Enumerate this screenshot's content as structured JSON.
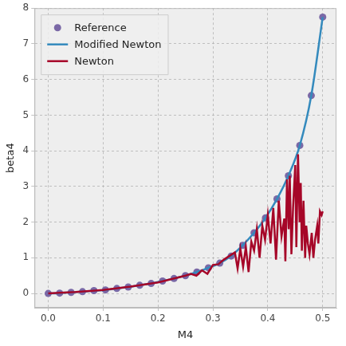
{
  "chart_data": {
    "type": "line",
    "x_label": "M4",
    "y_label": "beta4",
    "xlim": [
      -0.025,
      0.525
    ],
    "ylim": [
      -0.4,
      8
    ],
    "xticks": [
      {
        "value": 0,
        "label": "0.0"
      },
      {
        "value": 0.1,
        "label": "0.1"
      },
      {
        "value": 0.2,
        "label": "0.2"
      },
      {
        "value": 0.3,
        "label": "0.3"
      },
      {
        "value": 0.4,
        "label": "0.4"
      },
      {
        "value": 0.5,
        "label": "0.5"
      }
    ],
    "yticks": [
      0,
      1,
      2,
      3,
      4,
      5,
      6,
      7,
      8
    ],
    "grid": true,
    "legend": "upper left",
    "series": [
      {
        "name": "Reference",
        "type": "scatter",
        "marker": "circle",
        "color": "#7a68a6",
        "x": [
          0,
          0.0208,
          0.0417,
          0.0625,
          0.0833,
          0.1042,
          0.125,
          0.1458,
          0.1667,
          0.1875,
          0.2083,
          0.2292,
          0.25,
          0.2708,
          0.2917,
          0.3125,
          0.3333,
          0.3542,
          0.375,
          0.3958,
          0.4167,
          0.4375,
          0.4583,
          0.4792,
          0.5
        ],
        "values": [
          0,
          0.01,
          0.03,
          0.05,
          0.08,
          0.1,
          0.14,
          0.18,
          0.23,
          0.28,
          0.35,
          0.42,
          0.5,
          0.6,
          0.72,
          0.85,
          1.05,
          1.35,
          1.7,
          2.12,
          2.65,
          3.3,
          4.15,
          5.55,
          7.75
        ]
      },
      {
        "name": "Modified Newton",
        "type": "line",
        "line_style": "solid",
        "color": "#348abd",
        "x": [
          0,
          0.0208,
          0.0417,
          0.0625,
          0.0833,
          0.1042,
          0.125,
          0.1458,
          0.1667,
          0.1875,
          0.2083,
          0.2292,
          0.25,
          0.2708,
          0.2917,
          0.3125,
          0.3333,
          0.3542,
          0.375,
          0.3958,
          0.4167,
          0.4375,
          0.4583,
          0.4792,
          0.5
        ],
        "values": [
          0,
          0.01,
          0.03,
          0.05,
          0.08,
          0.1,
          0.14,
          0.18,
          0.23,
          0.28,
          0.35,
          0.42,
          0.5,
          0.6,
          0.72,
          0.85,
          1.05,
          1.35,
          1.7,
          2.12,
          2.65,
          3.3,
          4.15,
          5.55,
          7.75
        ]
      },
      {
        "name": "Newton",
        "type": "line",
        "line_style": "solid",
        "color": "#a60628",
        "x": [
          0,
          0.05,
          0.1,
          0.15,
          0.2,
          0.25,
          0.26,
          0.27,
          0.28,
          0.29,
          0.3,
          0.31,
          0.32,
          0.33,
          0.34,
          0.345,
          0.35,
          0.355,
          0.36,
          0.365,
          0.37,
          0.375,
          0.38,
          0.385,
          0.39,
          0.395,
          0.4,
          0.405,
          0.41,
          0.415,
          0.42,
          0.425,
          0.43,
          0.432,
          0.435,
          0.438,
          0.44,
          0.443,
          0.446,
          0.45,
          0.452,
          0.455,
          0.458,
          0.46,
          0.462,
          0.465,
          0.468,
          0.47,
          0.473,
          0.476,
          0.48,
          0.483,
          0.486,
          0.49,
          0.492,
          0.495,
          0.498,
          0.5
        ],
        "values": [
          0,
          0.04,
          0.1,
          0.19,
          0.31,
          0.5,
          0.55,
          0.5,
          0.65,
          0.55,
          0.8,
          0.82,
          0.95,
          1.05,
          1.15,
          0.7,
          1.25,
          0.75,
          1.3,
          0.6,
          1.45,
          1.2,
          1.8,
          1.0,
          1.9,
          1.5,
          2.2,
          1.4,
          2.4,
          0.95,
          2.6,
          1.6,
          2.1,
          0.9,
          3.2,
          1.8,
          3.3,
          1.1,
          2.4,
          3.6,
          1.3,
          3.9,
          2.0,
          3.1,
          1.2,
          2.6,
          1.0,
          1.9,
          1.4,
          1.1,
          1.7,
          1.0,
          1.5,
          1.9,
          1.4,
          2.3,
          2.2,
          2.3
        ]
      }
    ]
  }
}
